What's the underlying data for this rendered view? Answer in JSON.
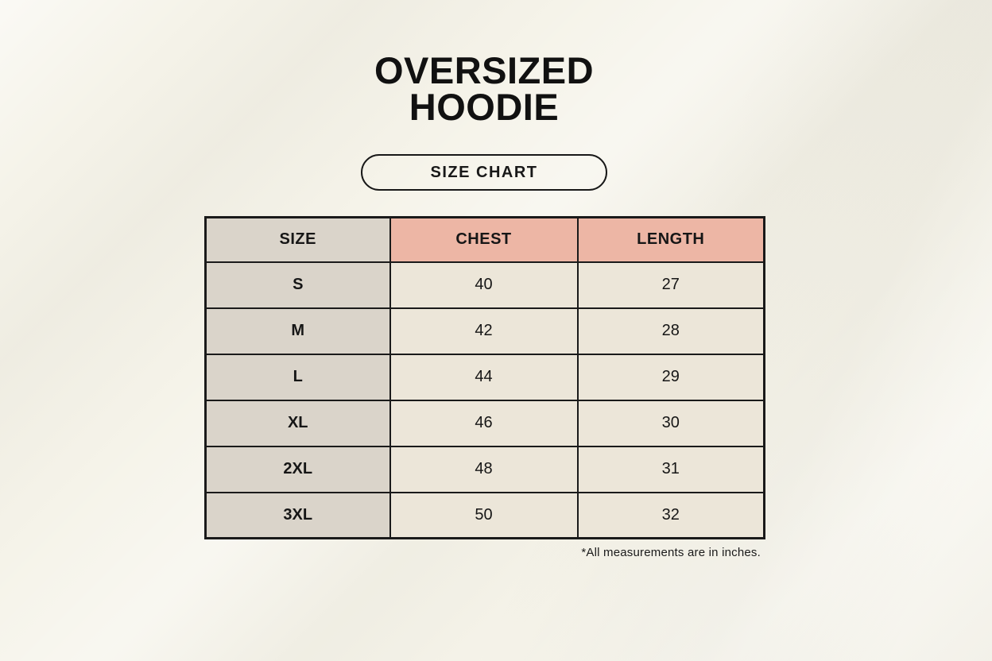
{
  "header": {
    "title_line1": "OVERSIZED",
    "title_line2": "HOODIE",
    "badge_label": "SIZE CHART"
  },
  "footnote": "*All measurements are in inches.",
  "colors": {
    "background": "#f5f3e9",
    "size_column_bg": "#dad4ca",
    "measurement_header_bg": "#edb6a5",
    "data_cell_bg": "#ece6d9",
    "border": "#1a1a1a",
    "text": "#161616"
  },
  "chart_data": {
    "type": "table",
    "title": "Oversized Hoodie Size Chart",
    "units": "inches",
    "columns": [
      "SIZE",
      "CHEST",
      "LENGTH"
    ],
    "rows": [
      [
        "S",
        40,
        27
      ],
      [
        "M",
        42,
        28
      ],
      [
        "L",
        44,
        29
      ],
      [
        "XL",
        46,
        30
      ],
      [
        "2XL",
        48,
        31
      ],
      [
        "3XL",
        50,
        32
      ]
    ]
  }
}
